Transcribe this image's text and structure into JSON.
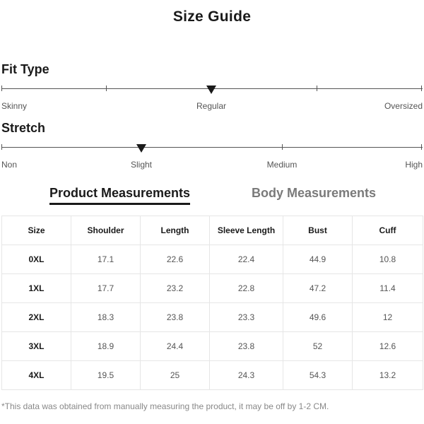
{
  "title": "Size Guide",
  "fit_type": {
    "heading": "Fit Type",
    "labels": [
      "Skinny",
      "Regular",
      "Oversized"
    ],
    "selected": "Regular"
  },
  "stretch": {
    "heading": "Stretch",
    "labels": [
      "Non",
      "Slight",
      "Medium",
      "High"
    ],
    "selected": "Slight"
  },
  "tabs": {
    "product": "Product Measurements",
    "body": "Body Measurements",
    "active": "Product Measurements"
  },
  "table": {
    "headers": [
      "Size",
      "Shoulder",
      "Length",
      "Sleeve Length",
      "Bust",
      "Cuff"
    ],
    "rows": [
      [
        "0XL",
        "17.1",
        "22.6",
        "22.4",
        "44.9",
        "10.8"
      ],
      [
        "1XL",
        "17.7",
        "23.2",
        "22.8",
        "47.2",
        "11.4"
      ],
      [
        "2XL",
        "18.3",
        "23.8",
        "23.3",
        "49.6",
        "12"
      ],
      [
        "3XL",
        "18.9",
        "24.4",
        "23.8",
        "52",
        "12.6"
      ],
      [
        "4XL",
        "19.5",
        "25",
        "24.3",
        "54.3",
        "13.2"
      ]
    ]
  },
  "note": "*This data was obtained from manually measuring the product, it may be off by 1-2 CM.",
  "icons": {
    "selection_marker": "triangle-down-icon"
  },
  "colors": {
    "text": "#1a1a1a",
    "muted": "#7a7a7a",
    "border": "#e6e6e6"
  }
}
